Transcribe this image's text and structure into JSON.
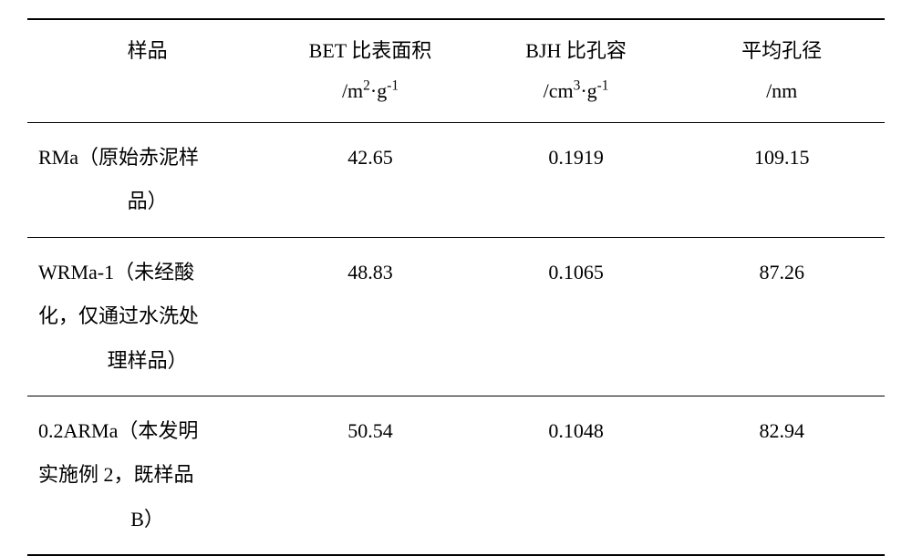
{
  "table": {
    "background_color": "#ffffff",
    "text_color": "#000000",
    "border_color": "#000000",
    "fontsize": 22,
    "columns": [
      {
        "key": "sample",
        "line1": "样品",
        "line2": "",
        "width_pct": 28
      },
      {
        "key": "bet",
        "line1": "BET 比表面积",
        "line2_prefix": "/m",
        "line2_sup1": "2",
        "line2_mid": "·g",
        "line2_sup2": "-1",
        "width_pct": 24
      },
      {
        "key": "bjh",
        "line1": "BJH 比孔容",
        "line2_prefix": "/cm",
        "line2_sup1": "3",
        "line2_mid": "·g",
        "line2_sup2": "-1",
        "width_pct": 24
      },
      {
        "key": "diameter",
        "line1": "平均孔径",
        "line2_plain": "/nm",
        "width_pct": 24
      }
    ],
    "rows": [
      {
        "sample_line1": "RMa（原始赤泥样",
        "sample_line2": "品）",
        "sample_line3": "",
        "bet": "42.65",
        "bjh": "0.1919",
        "diameter": "109.15"
      },
      {
        "sample_line1": "WRMa-1（未经酸",
        "sample_line2": "化，仅通过水洗处",
        "sample_line3": "理样品）",
        "bet": "48.83",
        "bjh": "0.1065",
        "diameter": "87.26"
      },
      {
        "sample_line1": "0.2ARMa（本发明",
        "sample_line2": "实施例 2，既样品",
        "sample_line3": "B）",
        "bet": "50.54",
        "bjh": "0.1048",
        "diameter": "82.94"
      }
    ]
  }
}
